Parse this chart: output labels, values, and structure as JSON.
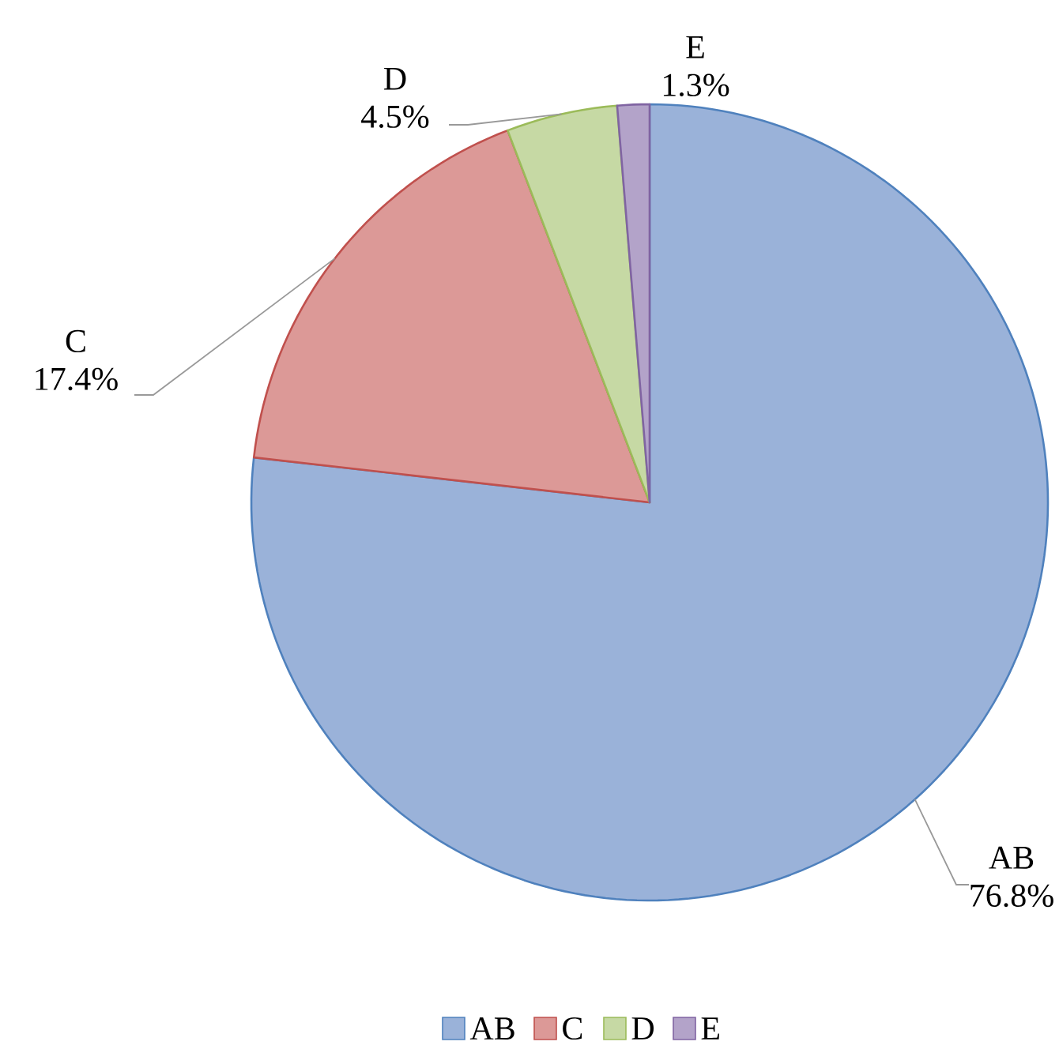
{
  "chart_data": {
    "type": "pie",
    "categories": [
      "AB",
      "C",
      "D",
      "E"
    ],
    "values": [
      76.8,
      17.4,
      4.5,
      1.3
    ],
    "value_labels": [
      "76.8%",
      "17.4%",
      "4.5%",
      "1.3%"
    ],
    "colors": [
      "#9ab2d9",
      "#dc9997",
      "#c6d9a4",
      "#b3a3c9"
    ],
    "legend": "bottom"
  }
}
